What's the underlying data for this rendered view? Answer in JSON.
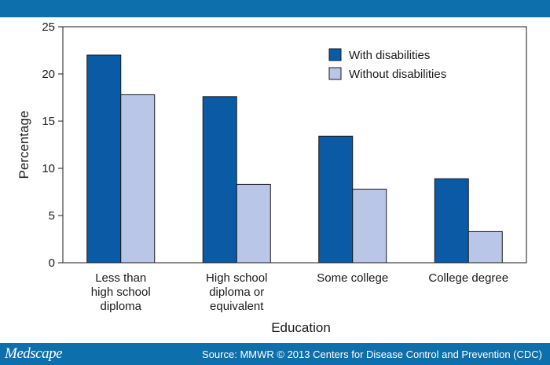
{
  "colors": {
    "header_bar": "#0d6fab",
    "footer_bar": "#0d6fab",
    "series_with": "#0b5aa6",
    "series_without": "#b9c6e7",
    "bar_stroke": "#1a1a1a"
  },
  "footer": {
    "brand": "Medscape",
    "source": "Source: MMWR © 2013 Centers for Disease Control and Prevention (CDC)"
  },
  "chart_data": {
    "type": "bar",
    "title": "",
    "xlabel": "Education",
    "ylabel": "Percentage",
    "ylim": [
      0,
      25
    ],
    "yticks": [
      0,
      5,
      10,
      15,
      20,
      25
    ],
    "categories": [
      [
        "Less than",
        "high school",
        "diploma"
      ],
      [
        "High school",
        "diploma or",
        "equivalent"
      ],
      [
        "Some college"
      ],
      [
        "College degree"
      ]
    ],
    "series": [
      {
        "name": "With disabilities",
        "values": [
          22.0,
          17.6,
          13.4,
          8.9
        ]
      },
      {
        "name": "Without disabilities",
        "values": [
          17.8,
          8.3,
          7.8,
          3.3
        ]
      }
    ],
    "legend_position": "top-right",
    "grid": false
  }
}
